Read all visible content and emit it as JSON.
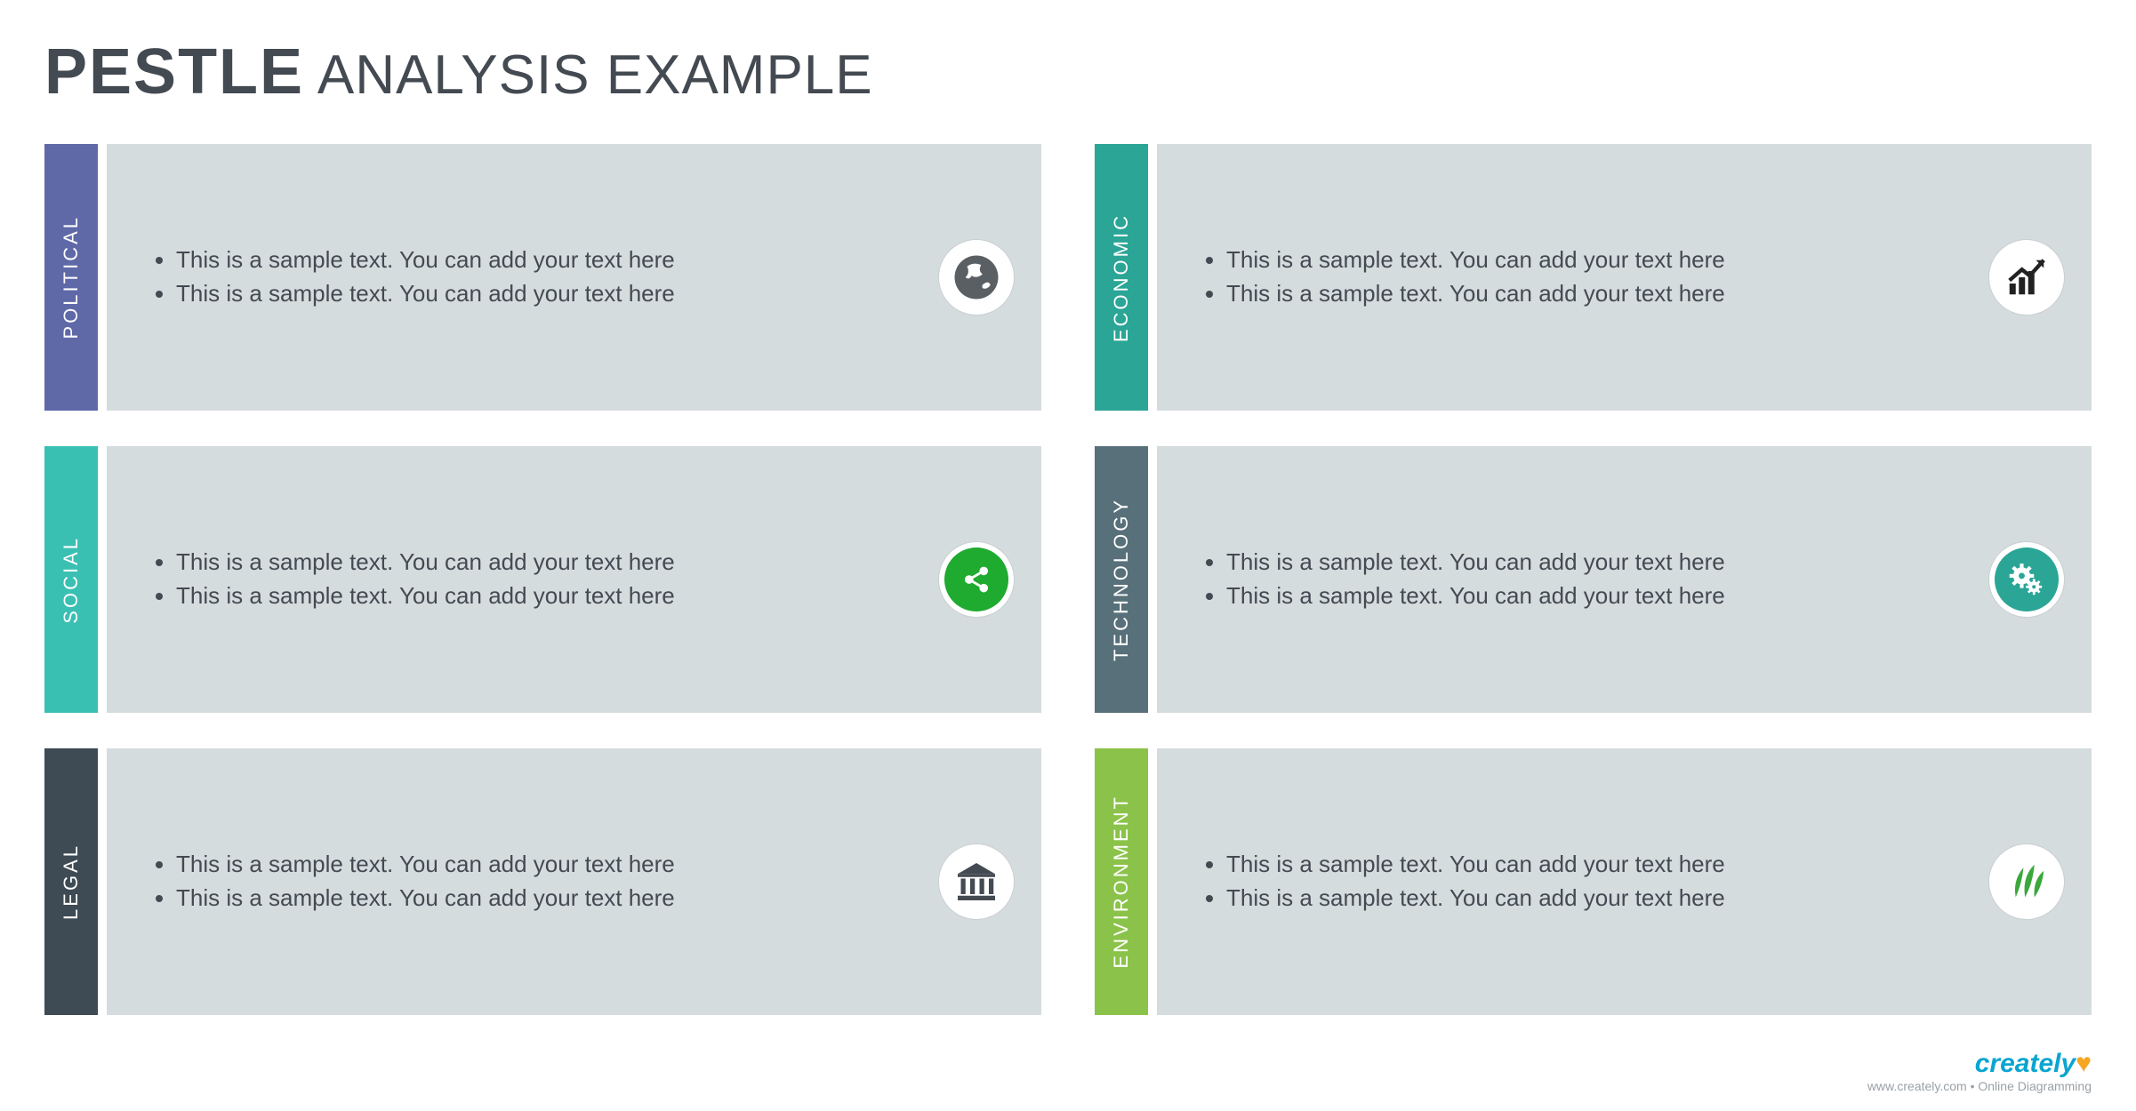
{
  "title_bold": "PESTLE",
  "title_rest": "ANALYSIS EXAMPLE",
  "body_bg": "#d5dcde",
  "text_color": "#444a52",
  "cards": [
    {
      "id": "political",
      "label": "POLITICAL",
      "tab_color": "#5f69a8",
      "icon": "globe",
      "icon_fill": "#5a5f63",
      "icon_bg": "#ffffff",
      "bullets": [
        "This is a sample text. You can add your text here",
        "This is a sample text. You can add your text here"
      ]
    },
    {
      "id": "economic",
      "label": "ECONOMIC",
      "tab_color": "#2aa596",
      "icon": "growth",
      "icon_fill": "#222222",
      "icon_bg": "#ffffff",
      "bullets": [
        "This is a sample text. You can add your text here",
        "This is a sample text. You can add your text here"
      ]
    },
    {
      "id": "social",
      "label": "SOCIAL",
      "tab_color": "#3ac0b3",
      "icon": "share",
      "icon_fill": "#ffffff",
      "icon_bg": "#1faa30",
      "bullets": [
        "This is a sample text. You can add your text here",
        "This is a sample text. You can add your text here"
      ]
    },
    {
      "id": "technology",
      "label": "TECHNOLOGY",
      "tab_color": "#58707a",
      "icon": "gears",
      "icon_fill": "#ffffff",
      "icon_bg": "#2aa596",
      "bullets": [
        "This is a sample text. You can add your text here",
        "This is a sample text. You can add your text here"
      ]
    },
    {
      "id": "legal",
      "label": "LEGAL",
      "tab_color": "#3e4b54",
      "icon": "bank",
      "icon_fill": "#444a52",
      "icon_bg": "#ffffff",
      "bullets": [
        "This is a sample text. You can add your text here",
        "This is a sample text. You can add your text here"
      ]
    },
    {
      "id": "environment",
      "label": "ENVIRONMENT",
      "tab_color": "#8bc34a",
      "icon": "leaf",
      "icon_fill": "#3aa83a",
      "icon_bg": "#ffffff",
      "bullets": [
        "This is a sample text. You can add your text here",
        "This is a sample text. You can add your text here"
      ]
    }
  ],
  "footer": {
    "brand": "creately",
    "tagline": "www.creately.com • Online Diagramming"
  }
}
